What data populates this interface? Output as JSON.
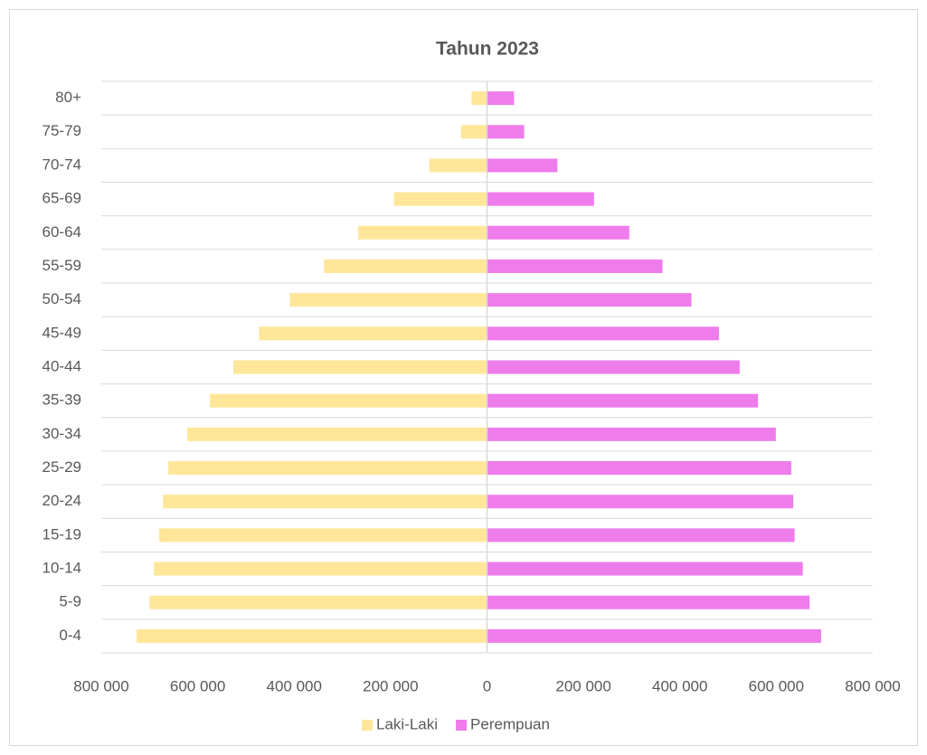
{
  "chart_data": {
    "type": "pyramid",
    "title": "Tahun 2023",
    "categories": [
      "0-4",
      "5-9",
      "10-14",
      "15-19",
      "20-24",
      "25-29",
      "30-34",
      "35-39",
      "40-44",
      "45-49",
      "50-54",
      "55-59",
      "60-64",
      "65-69",
      "70-74",
      "75-79",
      "80+"
    ],
    "series": [
      {
        "name": "Laki-Laki",
        "color": "#ffe699",
        "values": [
          -727000,
          -700000,
          -691000,
          -680000,
          -672000,
          -661000,
          -622000,
          -575000,
          -526000,
          -473000,
          -409000,
          -338000,
          -267000,
          -193000,
          -120000,
          -54000,
          -32000
        ]
      },
      {
        "name": "Perempuan",
        "color": "#ee7ceb",
        "values": [
          693000,
          669000,
          655000,
          638000,
          635000,
          631000,
          599000,
          562000,
          524000,
          481000,
          424000,
          364000,
          295000,
          222000,
          146000,
          77000,
          56000
        ]
      }
    ],
    "xlim": [
      -800000,
      800000
    ],
    "xticks": [
      {
        "value": -800000,
        "label": "800 000"
      },
      {
        "value": -600000,
        "label": "600 000"
      },
      {
        "value": -400000,
        "label": "400 000"
      },
      {
        "value": -200000,
        "label": "200 000"
      },
      0,
      {
        "value": 200000,
        "label": "200 000"
      },
      {
        "value": 400000,
        "label": "400 000"
      },
      {
        "value": 600000,
        "label": "600 000"
      },
      {
        "value": 800000,
        "label": "800 000"
      }
    ],
    "legend": "bottom"
  }
}
